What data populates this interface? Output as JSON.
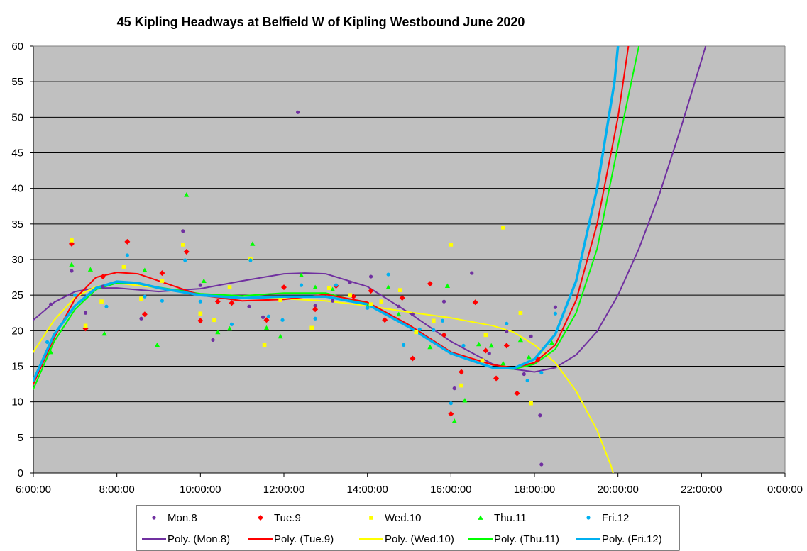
{
  "chart_data": {
    "type": "scatter",
    "title": "45 Kipling Headways at Belfield W of Kipling Westbound June 2020",
    "xlabel": "",
    "ylabel": "",
    "xlim": [
      "6:00:00",
      "0:00:00"
    ],
    "ylim": [
      0,
      60
    ],
    "x_ticks": [
      "6:00:00",
      "8:00:00",
      "10:00:00",
      "12:00:00",
      "14:00:00",
      "16:00:00",
      "18:00:00",
      "20:00:00",
      "22:00:00",
      "0:00:00"
    ],
    "y_ticks": [
      "0",
      "5",
      "10",
      "15",
      "20",
      "25",
      "30",
      "35",
      "40",
      "45",
      "50",
      "55",
      "60"
    ],
    "grid": "horizontal",
    "legend_position": "bottom",
    "background_color": "#c0c0c0",
    "series": [
      {
        "name": "Mon.8",
        "marker": "circle",
        "color": "#7030a0",
        "points": [
          [
            "6:25",
            23.7
          ],
          [
            "6:55",
            28.4
          ],
          [
            "7:15",
            22.5
          ],
          [
            "7:40",
            26.2
          ],
          [
            "8:35",
            21.7
          ],
          [
            "9:35",
            34.0
          ],
          [
            "10:00",
            26.4
          ],
          [
            "10:18",
            18.7
          ],
          [
            "11:10",
            23.4
          ],
          [
            "11:30",
            21.9
          ],
          [
            "12:20",
            50.7
          ],
          [
            "12:45",
            23.5
          ],
          [
            "13:10",
            24.2
          ],
          [
            "13:35",
            26.8
          ],
          [
            "14:05",
            27.6
          ],
          [
            "14:25",
            21.5
          ],
          [
            "14:45",
            23.4
          ],
          [
            "15:05",
            22.3
          ],
          [
            "15:50",
            24.1
          ],
          [
            "16:05",
            11.9
          ],
          [
            "16:30",
            28.1
          ],
          [
            "16:55",
            16.8
          ],
          [
            "17:20",
            19.9
          ],
          [
            "17:45",
            13.9
          ],
          [
            "17:55",
            19.2
          ],
          [
            "18:08",
            8.1
          ],
          [
            "18:10",
            1.2
          ],
          [
            "18:30",
            23.3
          ]
        ]
      },
      {
        "name": "Tue.9",
        "marker": "diamond",
        "color": "#ff0000",
        "points": [
          [
            "6:55",
            32.2
          ],
          [
            "7:15",
            20.3
          ],
          [
            "7:40",
            27.6
          ],
          [
            "8:15",
            32.5
          ],
          [
            "8:40",
            22.3
          ],
          [
            "9:05",
            28.1
          ],
          [
            "9:40",
            31.1
          ],
          [
            "10:00",
            21.4
          ],
          [
            "10:25",
            24.1
          ],
          [
            "10:45",
            23.9
          ],
          [
            "11:35",
            21.5
          ],
          [
            "12:00",
            26.1
          ],
          [
            "12:45",
            23.0
          ],
          [
            "13:15",
            26.3
          ],
          [
            "13:40",
            24.8
          ],
          [
            "14:05",
            25.6
          ],
          [
            "14:25",
            21.5
          ],
          [
            "14:50",
            24.6
          ],
          [
            "15:05",
            16.1
          ],
          [
            "15:30",
            26.6
          ],
          [
            "15:50",
            19.4
          ],
          [
            "16:00",
            8.3
          ],
          [
            "16:15",
            14.2
          ],
          [
            "16:35",
            24.0
          ],
          [
            "16:50",
            17.2
          ],
          [
            "17:05",
            13.3
          ],
          [
            "17:20",
            17.9
          ],
          [
            "17:35",
            11.2
          ],
          [
            "18:05",
            15.9
          ]
        ]
      },
      {
        "name": "Wed.10",
        "marker": "square",
        "color": "#ffff00",
        "points": [
          [
            "6:55",
            32.7
          ],
          [
            "7:15",
            20.7
          ],
          [
            "7:38",
            24.1
          ],
          [
            "8:10",
            29.0
          ],
          [
            "8:35",
            24.5
          ],
          [
            "9:05",
            27.0
          ],
          [
            "9:35",
            32.1
          ],
          [
            "10:00",
            22.4
          ],
          [
            "10:20",
            21.5
          ],
          [
            "10:42",
            26.1
          ],
          [
            "11:12",
            30.1
          ],
          [
            "11:32",
            18.0
          ],
          [
            "11:55",
            24.3
          ],
          [
            "12:40",
            20.4
          ],
          [
            "13:05",
            26.0
          ],
          [
            "13:35",
            25.0
          ],
          [
            "14:05",
            23.7
          ],
          [
            "14:20",
            24.1
          ],
          [
            "14:47",
            25.7
          ],
          [
            "15:10",
            19.8
          ],
          [
            "15:35",
            21.4
          ],
          [
            "16:00",
            32.1
          ],
          [
            "16:15",
            12.3
          ],
          [
            "16:45",
            15.8
          ],
          [
            "16:50",
            19.4
          ],
          [
            "17:15",
            34.5
          ],
          [
            "17:40",
            22.5
          ],
          [
            "17:55",
            9.8
          ]
        ]
      },
      {
        "name": "Thu.11",
        "marker": "triangle",
        "color": "#00ff00",
        "points": [
          [
            "6:25",
            17.0
          ],
          [
            "6:55",
            29.3
          ],
          [
            "7:22",
            28.6
          ],
          [
            "7:42",
            19.6
          ],
          [
            "8:40",
            28.5
          ],
          [
            "8:58",
            18.0
          ],
          [
            "9:40",
            39.1
          ],
          [
            "10:05",
            27.0
          ],
          [
            "10:25",
            19.8
          ],
          [
            "10:42",
            20.3
          ],
          [
            "11:15",
            32.2
          ],
          [
            "11:35",
            20.4
          ],
          [
            "11:55",
            19.2
          ],
          [
            "12:25",
            27.8
          ],
          [
            "12:45",
            26.1
          ],
          [
            "13:10",
            25.8
          ],
          [
            "14:00",
            23.4
          ],
          [
            "14:30",
            26.1
          ],
          [
            "14:45",
            22.3
          ],
          [
            "15:30",
            17.7
          ],
          [
            "15:55",
            26.3
          ],
          [
            "16:05",
            7.3
          ],
          [
            "16:20",
            10.2
          ],
          [
            "16:40",
            18.1
          ],
          [
            "16:58",
            17.9
          ],
          [
            "17:15",
            15.4
          ],
          [
            "17:40",
            18.7
          ],
          [
            "17:52",
            16.3
          ],
          [
            "18:25",
            18.3
          ]
        ]
      },
      {
        "name": "Fri.12",
        "marker": "circle",
        "color": "#00b0f0",
        "points": [
          [
            "6:20",
            18.4
          ],
          [
            "7:00",
            25.0
          ],
          [
            "7:45",
            23.4
          ],
          [
            "8:15",
            30.6
          ],
          [
            "8:40",
            24.8
          ],
          [
            "9:05",
            24.2
          ],
          [
            "9:38",
            29.9
          ],
          [
            "10:00",
            24.1
          ],
          [
            "10:45",
            20.9
          ],
          [
            "11:12",
            29.9
          ],
          [
            "11:38",
            22.0
          ],
          [
            "11:58",
            21.5
          ],
          [
            "12:25",
            26.4
          ],
          [
            "12:45",
            21.7
          ],
          [
            "13:15",
            26.4
          ],
          [
            "14:00",
            23.2
          ],
          [
            "14:30",
            27.9
          ],
          [
            "14:52",
            18.0
          ],
          [
            "15:15",
            20.2
          ],
          [
            "15:35",
            20.1
          ],
          [
            "15:48",
            21.4
          ],
          [
            "16:00",
            9.8
          ],
          [
            "16:18",
            17.9
          ],
          [
            "17:20",
            21.0
          ],
          [
            "17:50",
            13.0
          ],
          [
            "18:10",
            14.1
          ],
          [
            "18:30",
            22.4
          ]
        ]
      }
    ],
    "trendlines": [
      {
        "name": "Poly. (Mon.8)",
        "color": "#7030a0",
        "width": 2,
        "points": [
          [
            "6:00",
            21.5
          ],
          [
            "6:30",
            24.0
          ],
          [
            "7:00",
            25.5
          ],
          [
            "7:30",
            26.0
          ],
          [
            "8:00",
            26.0
          ],
          [
            "9:00",
            25.5
          ],
          [
            "10:00",
            25.9
          ],
          [
            "11:00",
            27.0
          ],
          [
            "12:00",
            28.0
          ],
          [
            "12:30",
            28.1
          ],
          [
            "13:00",
            28.0
          ],
          [
            "14:00",
            26.2
          ],
          [
            "15:00",
            22.5
          ],
          [
            "16:00",
            18.5
          ],
          [
            "17:00",
            15.3
          ],
          [
            "17:30",
            14.6
          ],
          [
            "18:00",
            14.2
          ],
          [
            "18:30",
            14.8
          ],
          [
            "19:00",
            16.6
          ],
          [
            "19:30",
            19.9
          ],
          [
            "20:00",
            25.0
          ],
          [
            "20:30",
            31.5
          ],
          [
            "21:00",
            39.3
          ],
          [
            "21:30",
            48.4
          ],
          [
            "22:00",
            58.0
          ],
          [
            "22:06",
            60.0
          ]
        ]
      },
      {
        "name": "Poly. (Tue.9)",
        "color": "#ff0000",
        "width": 2,
        "points": [
          [
            "6:00",
            12.5
          ],
          [
            "6:30",
            19.0
          ],
          [
            "7:00",
            24.5
          ],
          [
            "7:30",
            27.5
          ],
          [
            "8:00",
            28.2
          ],
          [
            "8:30",
            28.0
          ],
          [
            "9:00",
            27.0
          ],
          [
            "10:00",
            25.0
          ],
          [
            "11:00",
            24.2
          ],
          [
            "12:00",
            24.4
          ],
          [
            "13:00",
            25.1
          ],
          [
            "14:00",
            24.0
          ],
          [
            "15:00",
            20.8
          ],
          [
            "16:00",
            17.0
          ],
          [
            "17:00",
            15.2
          ],
          [
            "17:30",
            14.8
          ],
          [
            "18:00",
            15.5
          ],
          [
            "18:30",
            18.0
          ],
          [
            "19:00",
            24.3
          ],
          [
            "19:30",
            35.0
          ],
          [
            "20:00",
            50.0
          ],
          [
            "20:15",
            60.0
          ]
        ]
      },
      {
        "name": "Poly. (Wed.10)",
        "color": "#ffff00",
        "width": 2,
        "points": [
          [
            "6:00",
            17.0
          ],
          [
            "6:30",
            21.5
          ],
          [
            "7:00",
            24.7
          ],
          [
            "7:30",
            26.2
          ],
          [
            "8:00",
            26.7
          ],
          [
            "9:00",
            26.0
          ],
          [
            "10:00",
            25.2
          ],
          [
            "11:00",
            24.8
          ],
          [
            "12:00",
            24.5
          ],
          [
            "13:00",
            24.2
          ],
          [
            "14:00",
            23.5
          ],
          [
            "15:00",
            22.6
          ],
          [
            "16:00",
            21.8
          ],
          [
            "17:00",
            20.7
          ],
          [
            "17:30",
            19.8
          ],
          [
            "18:00",
            18.0
          ],
          [
            "18:30",
            15.5
          ],
          [
            "19:00",
            11.5
          ],
          [
            "19:30",
            6.0
          ],
          [
            "19:50",
            1.0
          ],
          [
            "19:53",
            0.0
          ]
        ]
      },
      {
        "name": "Poly. (Thu.11)",
        "color": "#00ff00",
        "width": 2,
        "points": [
          [
            "6:00",
            11.8
          ],
          [
            "6:30",
            18.5
          ],
          [
            "7:00",
            23.0
          ],
          [
            "7:30",
            25.8
          ],
          [
            "8:00",
            26.7
          ],
          [
            "8:30",
            26.6
          ],
          [
            "9:00",
            26.1
          ],
          [
            "10:00",
            25.2
          ],
          [
            "11:00",
            24.9
          ],
          [
            "12:00",
            25.3
          ],
          [
            "13:00",
            25.3
          ],
          [
            "14:00",
            23.8
          ],
          [
            "15:00",
            20.5
          ],
          [
            "16:00",
            16.9
          ],
          [
            "17:00",
            14.8
          ],
          [
            "17:30",
            14.6
          ],
          [
            "18:00",
            15.3
          ],
          [
            "18:30",
            17.4
          ],
          [
            "19:00",
            22.5
          ],
          [
            "19:30",
            31.5
          ],
          [
            "20:00",
            46.0
          ],
          [
            "20:30",
            60.0
          ]
        ]
      },
      {
        "name": "Poly. (Fri.12)",
        "color": "#00b0f0",
        "width": 3.5,
        "points": [
          [
            "6:00",
            13.0
          ],
          [
            "6:30",
            19.5
          ],
          [
            "7:00",
            23.5
          ],
          [
            "7:30",
            26.0
          ],
          [
            "8:00",
            26.9
          ],
          [
            "8:30",
            26.7
          ],
          [
            "9:00",
            26.0
          ],
          [
            "10:00",
            25.0
          ],
          [
            "11:00",
            24.6
          ],
          [
            "12:00",
            24.8
          ],
          [
            "13:00",
            24.8
          ],
          [
            "14:00",
            23.7
          ],
          [
            "15:00",
            20.5
          ],
          [
            "16:00",
            16.8
          ],
          [
            "17:00",
            14.8
          ],
          [
            "17:30",
            14.7
          ],
          [
            "18:00",
            16.0
          ],
          [
            "18:30",
            19.5
          ],
          [
            "19:00",
            27.0
          ],
          [
            "19:30",
            40.0
          ],
          [
            "19:55",
            55.0
          ],
          [
            "20:00",
            60.0
          ]
        ]
      }
    ],
    "legend": [
      {
        "label": "Mon.8",
        "kind": "marker",
        "marker": "circle",
        "color": "#7030a0"
      },
      {
        "label": "Tue.9",
        "kind": "marker",
        "marker": "diamond",
        "color": "#ff0000"
      },
      {
        "label": "Wed.10",
        "kind": "marker",
        "marker": "square",
        "color": "#ffff00"
      },
      {
        "label": "Thu.11",
        "kind": "marker",
        "marker": "triangle",
        "color": "#00ff00"
      },
      {
        "label": "Fri.12",
        "kind": "marker",
        "marker": "circle",
        "color": "#00b0f0"
      },
      {
        "label": "Poly. (Mon.8)",
        "kind": "line",
        "color": "#7030a0"
      },
      {
        "label": "Poly. (Tue.9)",
        "kind": "line",
        "color": "#ff0000"
      },
      {
        "label": "Poly. (Wed.10)",
        "kind": "line",
        "color": "#ffff00"
      },
      {
        "label": "Poly. (Thu.11)",
        "kind": "line",
        "color": "#00ff00"
      },
      {
        "label": "Poly. (Fri.12)",
        "kind": "line",
        "color": "#00b0f0"
      }
    ]
  }
}
